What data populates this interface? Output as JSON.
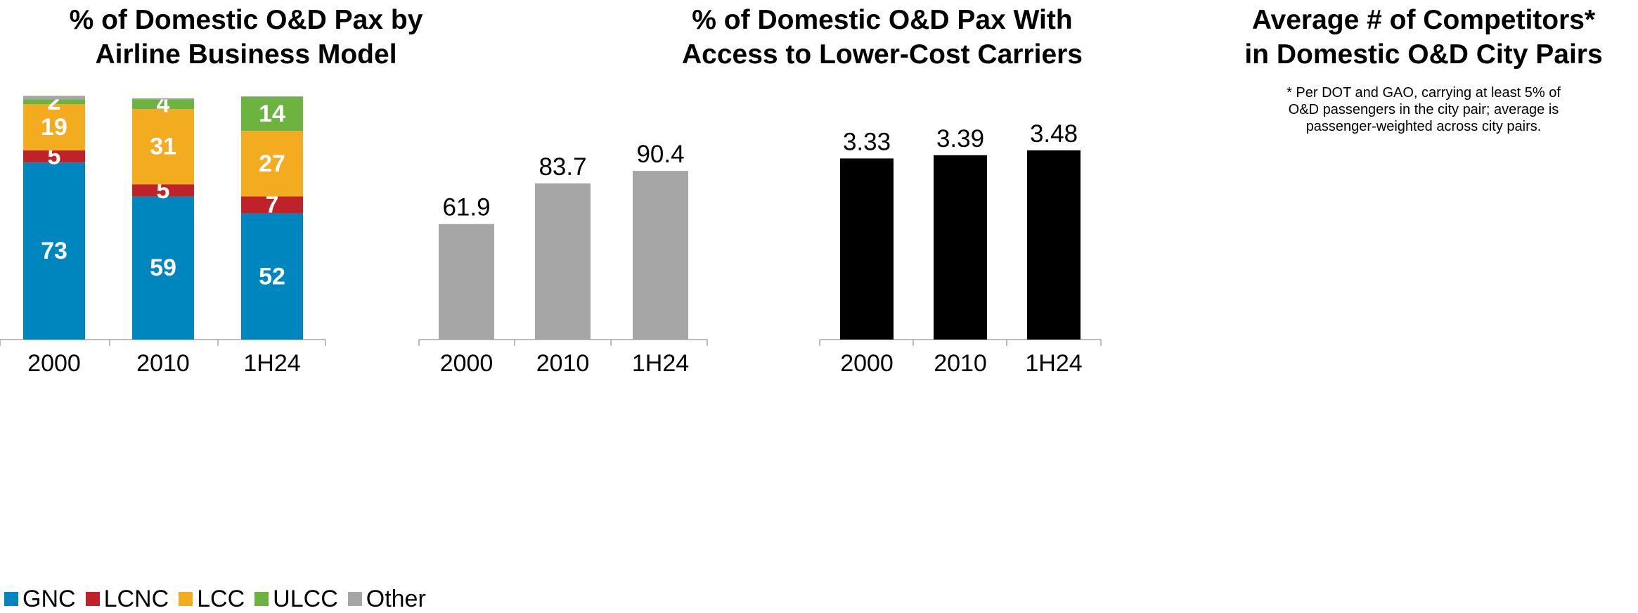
{
  "chart_data": [
    {
      "type": "bar",
      "stacked": true,
      "title_lines": [
        "% of Domestic O&D Pax by",
        "Airline Business Model"
      ],
      "categories": [
        "2000",
        "2010",
        "1H24"
      ],
      "series": [
        {
          "name": "GNC",
          "color": "#0086BF",
          "values": [
            73,
            59,
            52
          ],
          "labels": [
            "73",
            "59",
            "52"
          ]
        },
        {
          "name": "LCNC",
          "color": "#BF2228",
          "values": [
            5,
            5,
            7
          ],
          "labels": [
            "5",
            "5",
            "7"
          ]
        },
        {
          "name": "LCC",
          "color": "#F3AB1F",
          "values": [
            19,
            31,
            27
          ],
          "labels": [
            "19",
            "31",
            "27"
          ]
        },
        {
          "name": "ULCC",
          "color": "#6CB43F",
          "values": [
            2,
            4,
            14
          ],
          "labels": [
            "2",
            "4",
            "14"
          ]
        },
        {
          "name": "Other",
          "color": "#A6A6A6",
          "values": [
            1.5,
            0.5,
            0.3
          ],
          "labels": [
            "",
            "",
            ""
          ]
        }
      ],
      "ylim": [
        0,
        100
      ],
      "legend": "bottom-left"
    },
    {
      "type": "bar",
      "title_lines": [
        "% of Domestic O&D Pax With",
        "Access to Lower-Cost Carriers"
      ],
      "categories": [
        "2000",
        "2010",
        "1H24"
      ],
      "values": [
        61.9,
        83.7,
        90.4
      ],
      "labels": [
        "61.9",
        "83.7",
        "90.4"
      ],
      "color": "#A6A6A6",
      "ylim": [
        0,
        130
      ]
    },
    {
      "type": "bar",
      "title_lines": [
        "Average # of Competitors*",
        "in Domestic O&D City Pairs"
      ],
      "note_lines": [
        "* Per DOT and GAO, carrying at least 5% of",
        "O&D passengers in the city pair; average is",
        "passenger-weighted across city pairs."
      ],
      "categories": [
        "2000",
        "2010",
        "1H24"
      ],
      "values": [
        3.33,
        3.39,
        3.48
      ],
      "labels": [
        "3.33",
        "3.39",
        "3.48"
      ],
      "color": "#000000",
      "ylim": [
        0,
        4.46
      ]
    }
  ]
}
